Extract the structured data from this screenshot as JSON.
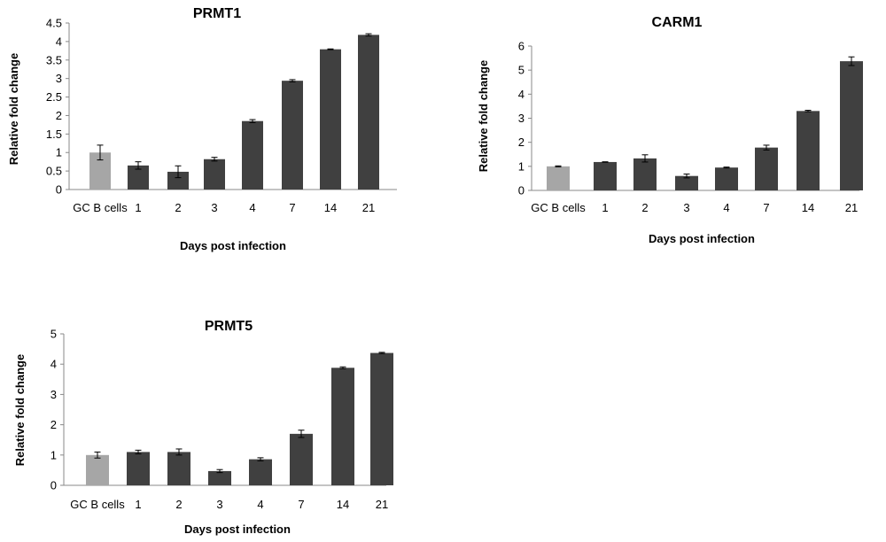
{
  "charts": [
    {
      "id": "prmt1",
      "title": "PRMT1"
    },
    {
      "id": "carm1",
      "title": "CARM1"
    },
    {
      "id": "prmt5",
      "title": "PRMT5"
    }
  ],
  "colors": {
    "control": "#a6a6a6",
    "bar": "#404040",
    "axis": "#888888"
  },
  "chart_data": [
    {
      "type": "bar",
      "title": "PRMT1",
      "xlabel": "Days post infection",
      "ylabel": "Relative fold change",
      "categories": [
        "GC B cells",
        "1",
        "2",
        "3",
        "4",
        "7",
        "14",
        "21"
      ],
      "values": [
        1.0,
        0.65,
        0.48,
        0.82,
        1.85,
        2.94,
        3.79,
        4.18
      ],
      "errors": [
        0.2,
        0.1,
        0.16,
        0.05,
        0.04,
        0.03,
        0.01,
        0.03
      ],
      "yticks": [
        "0",
        "0.5",
        "1",
        "1.5",
        "2",
        "2.5",
        "3",
        "3.5",
        "4",
        "4.5"
      ],
      "ylim": [
        0,
        4.5
      ],
      "grid": false,
      "legend": "none"
    },
    {
      "type": "bar",
      "title": "CARM1",
      "xlabel": "Days post infection",
      "ylabel": "Relative fold change",
      "categories": [
        "GC B cells",
        "1",
        "2",
        "3",
        "4",
        "7",
        "14",
        "21"
      ],
      "values": [
        1.0,
        1.18,
        1.33,
        0.6,
        0.95,
        1.78,
        3.3,
        5.37
      ],
      "errors": [
        0.02,
        0.01,
        0.15,
        0.08,
        0.02,
        0.1,
        0.03,
        0.18
      ],
      "yticks": [
        "0",
        "1",
        "2",
        "3",
        "4",
        "5",
        "6"
      ],
      "ylim": [
        0,
        6
      ],
      "grid": false,
      "legend": "none"
    },
    {
      "type": "bar",
      "title": "PRMT5",
      "xlabel": "Days post infection",
      "ylabel": "Relative fold change",
      "categories": [
        "GC B cells",
        "1",
        "2",
        "3",
        "4",
        "7",
        "14",
        "21"
      ],
      "values": [
        1.0,
        1.1,
        1.1,
        0.47,
        0.86,
        1.7,
        3.88,
        4.37
      ],
      "errors": [
        0.1,
        0.06,
        0.1,
        0.05,
        0.05,
        0.12,
        0.03,
        0.02
      ],
      "yticks": [
        "0",
        "1",
        "2",
        "3",
        "4",
        "5"
      ],
      "ylim": [
        0,
        5
      ],
      "grid": false,
      "legend": "none"
    }
  ]
}
